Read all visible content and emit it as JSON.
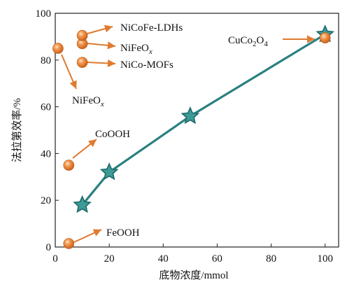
{
  "chart_data": {
    "type": "scatter",
    "xlabel": "底物浓度/mmol",
    "ylabel": "法拉第效率/%",
    "xlim": [
      0,
      105
    ],
    "ylim": [
      0,
      100
    ],
    "xticks": [
      "0",
      "20",
      "40",
      "60",
      "80",
      "100"
    ],
    "yticks": [
      "0",
      "20",
      "40",
      "60",
      "80",
      "100"
    ],
    "series": [
      {
        "marker": "star",
        "connected": true,
        "color": "#2a8080",
        "points": [
          {
            "x": 10,
            "y": 18
          },
          {
            "x": 20,
            "y": 32
          },
          {
            "x": 50,
            "y": 56
          },
          {
            "x": 100,
            "y": 91
          }
        ]
      },
      {
        "marker": "sphere",
        "color": "#e07a2e",
        "points": [
          {
            "x": 5,
            "y": 1.5,
            "label": "FeOOH"
          },
          {
            "x": 5,
            "y": 35,
            "label": "CoOOH"
          },
          {
            "x": 1,
            "y": 85,
            "label": "NiFeOx"
          },
          {
            "x": 10,
            "y": 79,
            "label": "NiCo-MOFs"
          },
          {
            "x": 10,
            "y": 87,
            "label": "NiFeOx"
          },
          {
            "x": 10,
            "y": 90.5,
            "label": "NiCoFe-LDHs"
          },
          {
            "x": 100,
            "y": 89.5,
            "label": "CuCo2O4"
          }
        ]
      }
    ],
    "annotations": {
      "feooh": "FeOOH",
      "cooh": "CoOOH",
      "nifeox_left_base": "NiFeO",
      "nifeox_left_sub": "x",
      "nifeox_mid_base": "NiFeO",
      "nifeox_mid_sub": "x",
      "nicofe": "NiCoFe-LDHs",
      "nicomofs": "NiCo-MOFs",
      "cuco_base": "CuCo",
      "cuco_sub1": "2",
      "cuco_mid": "O",
      "cuco_sub2": "4"
    },
    "arrow_color": "#e07a2e",
    "grid": false,
    "legend": "none"
  }
}
